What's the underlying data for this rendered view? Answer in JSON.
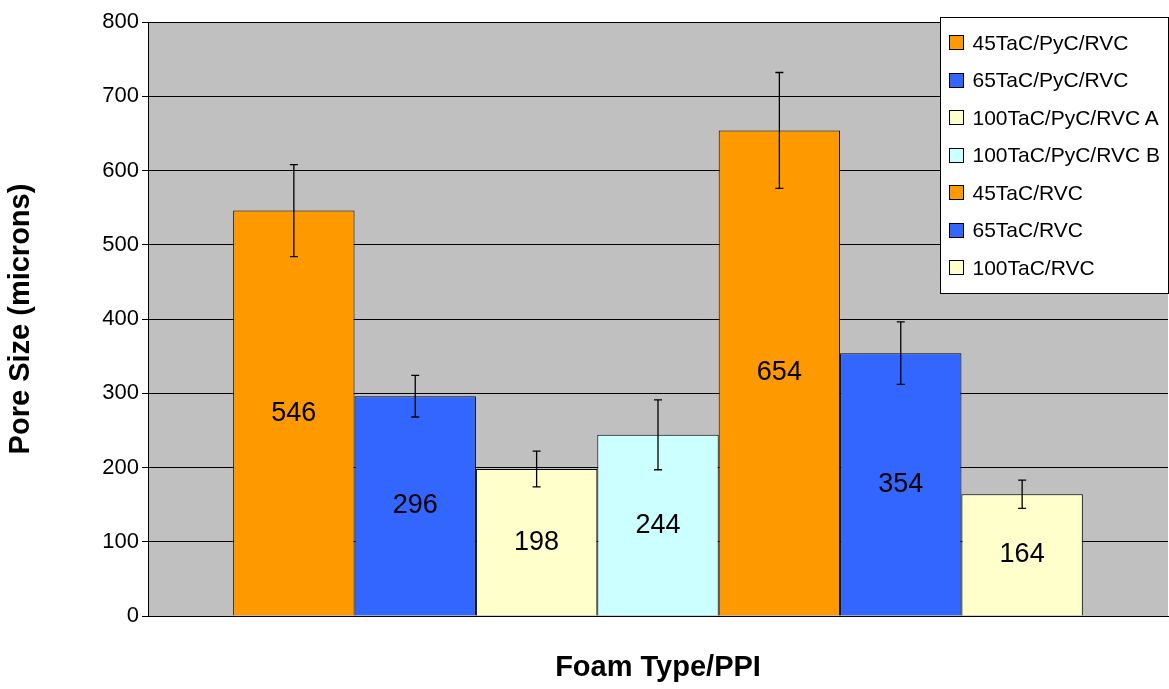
{
  "chart_data": {
    "type": "bar",
    "xlabel": "Foam Type/PPI",
    "ylabel": "Pore Size (microns)",
    "categories": [
      null
    ],
    "series": [
      {
        "name": "45TaC/PyC/RVC",
        "color": "#ff9900",
        "values": [
          546
        ],
        "errors": [
          62
        ]
      },
      {
        "name": "65TaC/PyC/RVC",
        "color": "#3366ff",
        "values": [
          296
        ],
        "errors": [
          28
        ]
      },
      {
        "name": "100TaC/PyC/RVC A",
        "color": "#ffffcc",
        "values": [
          198
        ],
        "errors": [
          24
        ]
      },
      {
        "name": "100TaC/PyC/RVC B",
        "color": "#ccffff",
        "values": [
          244
        ],
        "errors": [
          47
        ]
      },
      {
        "name": "45TaC/RVC",
        "color": "#ff9900",
        "values": [
          654
        ],
        "errors": [
          78
        ]
      },
      {
        "name": "65TaC/RVC",
        "color": "#3366ff",
        "values": [
          354
        ],
        "errors": [
          42
        ]
      },
      {
        "name": "100TaC/RVC",
        "color": "#ffffcc",
        "values": [
          164
        ],
        "errors": [
          19
        ]
      }
    ],
    "ylim": [
      0,
      800
    ],
    "yticks": [
      0,
      100,
      200,
      300,
      400,
      500,
      600,
      700,
      800
    ],
    "grid": "y",
    "legend": "top right",
    "data_labels": true
  }
}
